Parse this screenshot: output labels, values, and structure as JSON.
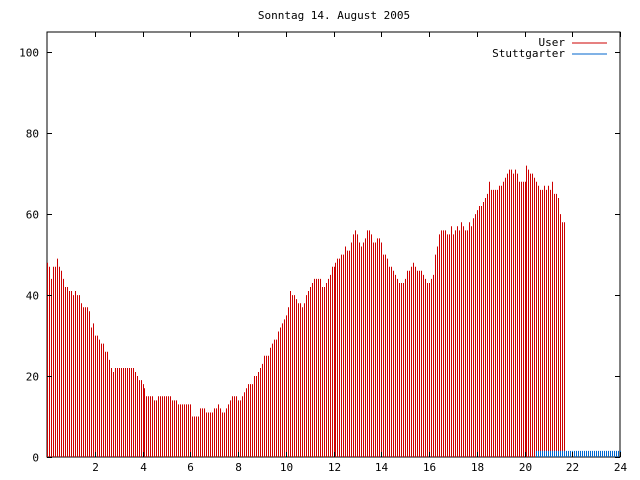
{
  "chart_data": {
    "type": "bar",
    "title": "Sonntag 14. August 2005",
    "xlabel": "",
    "ylabel": "",
    "xlim": [
      0,
      24
    ],
    "ylim": [
      0,
      105
    ],
    "xticks": [
      2,
      4,
      6,
      8,
      10,
      12,
      14,
      16,
      18,
      20,
      22,
      24
    ],
    "yticks": [
      0,
      20,
      40,
      60,
      80,
      100
    ],
    "legend_position": "top-right",
    "grid": false,
    "series": [
      {
        "name": "User",
        "color": "#cc0000",
        "interval_minutes": 5,
        "values": [
          48,
          47,
          44,
          47,
          47,
          49,
          47,
          46,
          44,
          42,
          42,
          41,
          41,
          40,
          41,
          40,
          40,
          38,
          37,
          37,
          37,
          36,
          32,
          33,
          30,
          30,
          29,
          28,
          28,
          26,
          26,
          24,
          22,
          21,
          22,
          22,
          22,
          22,
          22,
          22,
          22,
          22,
          22,
          22,
          21,
          20,
          19,
          19,
          18,
          17,
          15,
          15,
          15,
          15,
          14,
          14,
          15,
          15,
          15,
          15,
          15,
          15,
          15,
          14,
          14,
          14,
          13,
          13,
          13,
          13,
          13,
          13,
          13,
          10,
          10,
          10,
          10,
          12,
          12,
          12,
          11,
          11,
          11,
          11,
          12,
          12,
          13,
          12,
          11,
          11,
          12,
          13,
          14,
          15,
          15,
          15,
          14,
          14,
          15,
          16,
          17,
          18,
          18,
          18,
          20,
          20,
          21,
          22,
          23,
          25,
          25,
          25,
          27,
          28,
          29,
          29,
          31,
          32,
          33,
          34,
          35,
          37,
          41,
          40,
          40,
          39,
          38,
          38,
          37,
          38,
          40,
          41,
          42,
          43,
          44,
          44,
          44,
          44,
          42,
          42,
          43,
          44,
          45,
          47,
          47,
          48,
          49,
          49,
          50,
          50,
          52,
          51,
          51,
          53,
          55,
          56,
          55,
          53,
          52,
          53,
          54,
          56,
          56,
          55,
          53,
          53,
          54,
          54,
          53,
          50,
          50,
          49,
          47,
          47,
          46,
          45,
          44,
          43,
          43,
          43,
          44,
          46,
          46,
          47,
          48,
          47,
          46,
          46,
          46,
          45,
          44,
          43,
          43,
          44,
          45,
          50,
          52,
          55,
          56,
          56,
          56,
          55,
          55,
          57,
          55,
          56,
          57,
          56,
          58,
          57,
          56,
          56,
          58,
          57,
          59,
          60,
          61,
          62,
          62,
          63,
          64,
          65,
          68,
          66,
          66,
          66,
          66,
          67,
          67,
          68,
          69,
          70,
          71,
          71,
          70,
          71,
          70,
          68,
          68,
          68,
          68,
          72,
          71,
          70,
          70,
          69,
          68,
          67,
          66,
          66,
          67,
          66,
          67,
          66,
          68,
          65,
          65,
          64,
          60,
          58,
          58
        ]
      },
      {
        "name": "Stuttgarter",
        "color": "#0066cc",
        "interval_minutes": 5,
        "value_from_hour": 20.5,
        "value": 1.5
      }
    ]
  }
}
